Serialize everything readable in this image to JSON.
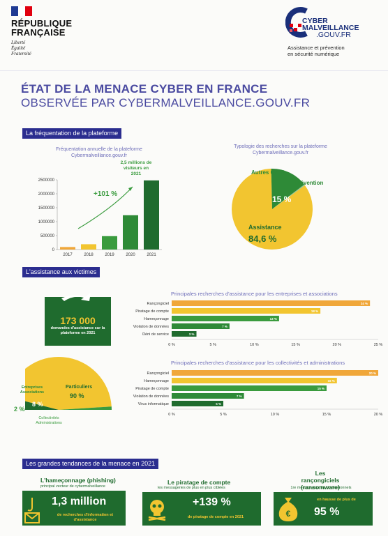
{
  "header": {
    "republic_line1": "RÉPUBLIQUE",
    "republic_line2": "FRANÇAISE",
    "motto": [
      "Liberté",
      "Égalité",
      "Fraternité"
    ],
    "brand_line1": "CYBER",
    "brand_line2": "MALVEILLANCE",
    "brand_line3": ".GOUV.FR",
    "tagline_line1": "Assistance et prévention",
    "tagline_line2": "en sécurité numérique"
  },
  "title": {
    "line1": "ÉTAT DE LA MENACE CYBER EN FRANCE",
    "line2": "OBSERVÉE PAR CYBERMALVEILLANCE.GOUV.FR"
  },
  "section1": {
    "header": "La fréquentation de la plateforme",
    "bar_caption": "Fréquentation annuelle de la plateforme Cybermalveillance.gouv.fr",
    "growth": "+101 %",
    "callout": "2,5 millions de visiteurs en 2021",
    "pie_caption": "Typologie des recherches sur la plateforme Cybermalveillance.gouv.fr",
    "pie_other": "Autres 0,4 %",
    "pie_prevention": "Prévention",
    "pie_prevention_pct": "15 %",
    "pie_assistance": "Assistance",
    "pie_assistance_pct": "84,6 %"
  },
  "section2": {
    "header": "L'assistance aux victimes",
    "big_number": "173 000",
    "big_caption": "demandes d'assistance sur la plateforme en 2021",
    "chart1_title": "Principales recherches d'assistance pour les entreprises et associations",
    "chart2_title": "Principales recherches d'assistance pour les collectivités et administrations",
    "half_pie": {
      "left_label": "Entreprises Associations",
      "left_pct": "8 %",
      "right_label": "Particuliers",
      "right_pct": "90 %",
      "bottom_pct": "2 %",
      "bottom_label": "Collectivités Administrations"
    }
  },
  "section3": {
    "header": "Les grandes tendances de la menace en 2021",
    "t1_title": "L'hameçonnage (phishing)",
    "t1_sub": "principal vecteur de cybermalveillance",
    "t1_value": "1,3 million",
    "t1_caption": "de recherches d'information et d'assistance",
    "t2_title": "Le piratage de compte",
    "t2_sub": "les messageries de plus en plus ciblées",
    "t2_value": "+139 %",
    "t2_caption": "de piratage de compte en 2021",
    "t3_title": "Les rançongiciels (ransomware)",
    "t3_sub": "1re menace pour les professionnels",
    "t3_value": "95 %",
    "t3_caption": "en hausse de plus de"
  },
  "colors": {
    "navy": "#2b2d8f",
    "green_dark": "#1f6b2e",
    "green": "#3a9b3e",
    "yellow": "#f2c530",
    "orange": "#f0a73a"
  },
  "chart_data": [
    {
      "type": "bar",
      "title": "Fréquentation annuelle de la plateforme Cybermalveillance.gouv.fr",
      "categories": [
        "2017",
        "2018",
        "2019",
        "2020",
        "2021"
      ],
      "values": [
        90000,
        190000,
        480000,
        1230000,
        2480000
      ],
      "ylim": [
        0,
        2500000
      ],
      "yticks": [
        "0",
        "500000",
        "1000000",
        "1500000",
        "2000000",
        "2500000"
      ]
    },
    {
      "type": "pie",
      "title": "Typologie des recherches sur la plateforme Cybermalveillance.gouv.fr",
      "labels": [
        "Assistance",
        "Prévention",
        "Autres"
      ],
      "values": [
        84.6,
        15,
        0.4
      ]
    },
    {
      "type": "bar",
      "title": "Principales recherches d'assistance pour les entreprises et associations",
      "categories": [
        "Rançongiciel",
        "Piratage de compte",
        "Hameçonnage",
        "Violation de données",
        "Déni de service"
      ],
      "values": [
        24,
        18,
        13,
        7,
        3
      ],
      "value_labels": [
        "24 %",
        "18 %",
        "13 %",
        "7 %",
        "3 %"
      ],
      "xlim": [
        0,
        25
      ],
      "xticks": [
        "0 %",
        "5 %",
        "10 %",
        "15 %",
        "20 %",
        "25 %"
      ]
    },
    {
      "type": "bar",
      "title": "Principales recherches d'assistance pour les collectivités et administrations",
      "categories": [
        "Rançongiciel",
        "Hameçonnage",
        "Piratage de compte",
        "Violation de données",
        "Virus informatique"
      ],
      "values": [
        20,
        16,
        15,
        7,
        5
      ],
      "value_labels": [
        "20 %",
        "16 %",
        "15 %",
        "7 %",
        "5 %"
      ],
      "xlim": [
        0,
        20
      ],
      "xticks": [
        "0 %",
        "5 %",
        "10 %",
        "15 %",
        "20 %"
      ]
    },
    {
      "type": "pie",
      "title": "",
      "labels": [
        "Particuliers",
        "Entreprises Associations",
        "Collectivités Administrations"
      ],
      "values": [
        90,
        8,
        2
      ]
    }
  ]
}
